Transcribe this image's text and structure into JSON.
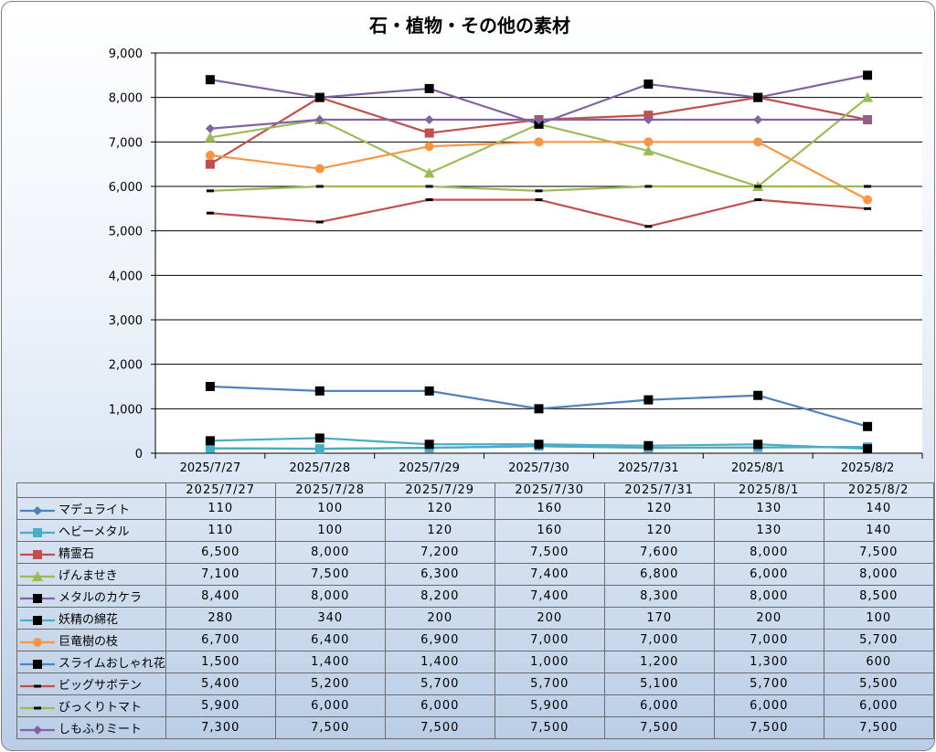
{
  "chart_data": {
    "type": "line",
    "title": "石・植物・その他の素材",
    "categories": [
      "2025/7/27",
      "2025/7/28",
      "2025/7/29",
      "2025/7/30",
      "2025/7/31",
      "2025/8/1",
      "2025/8/2"
    ],
    "ylim": [
      0,
      9000
    ],
    "yticks": [
      "0",
      "1,000",
      "2,000",
      "3,000",
      "4,000",
      "5,000",
      "6,000",
      "7,000",
      "8,000",
      "9,000"
    ],
    "grid": true,
    "legend": "data-table",
    "series": [
      {
        "name": "マデュライト",
        "color": "#4f81bd",
        "marker": "diamond",
        "values": [
          110,
          100,
          120,
          160,
          120,
          130,
          140
        ],
        "labels": [
          "110",
          "100",
          "120",
          "160",
          "120",
          "130",
          "140"
        ]
      },
      {
        "name": "ヘビーメタル",
        "color": "#4bacc6",
        "marker": "square",
        "values": [
          110,
          100,
          120,
          160,
          120,
          130,
          140
        ],
        "labels": [
          "110",
          "100",
          "120",
          "160",
          "120",
          "130",
          "140"
        ]
      },
      {
        "name": "精霊石",
        "color": "#c0504d",
        "marker": "square",
        "values": [
          6500,
          8000,
          7200,
          7500,
          7600,
          8000,
          7500
        ],
        "labels": [
          "6,500",
          "8,000",
          "7,200",
          "7,500",
          "7,600",
          "8,000",
          "7,500"
        ]
      },
      {
        "name": "げんませき",
        "color": "#9bbb59",
        "marker": "triangle",
        "values": [
          7100,
          7500,
          6300,
          7400,
          6800,
          6000,
          8000
        ],
        "labels": [
          "7,100",
          "7,500",
          "6,300",
          "7,400",
          "6,800",
          "6,000",
          "8,000"
        ]
      },
      {
        "name": "メタルのカケラ",
        "color": "#8064a2",
        "marker": "blacksquare",
        "values": [
          8400,
          8000,
          8200,
          7400,
          8300,
          8000,
          8500
        ],
        "labels": [
          "8,400",
          "8,000",
          "8,200",
          "7,400",
          "8,300",
          "8,000",
          "8,500"
        ]
      },
      {
        "name": "妖精の綿花",
        "color": "#4bacc6",
        "marker": "blacksquare",
        "values": [
          280,
          340,
          200,
          200,
          170,
          200,
          100
        ],
        "labels": [
          "280",
          "340",
          "200",
          "200",
          "170",
          "200",
          "100"
        ]
      },
      {
        "name": "巨竜樹の枝",
        "color": "#f79646",
        "marker": "circle",
        "values": [
          6700,
          6400,
          6900,
          7000,
          7000,
          7000,
          5700
        ],
        "labels": [
          "6,700",
          "6,400",
          "6,900",
          "7,000",
          "7,000",
          "7,000",
          "5,700"
        ]
      },
      {
        "name": "スライムおしゃれ花",
        "color": "#4f81bd",
        "marker": "blacksquare",
        "values": [
          1500,
          1400,
          1400,
          1000,
          1200,
          1300,
          600
        ],
        "labels": [
          "1,500",
          "1,400",
          "1,400",
          "1,000",
          "1,200",
          "1,300",
          "600"
        ]
      },
      {
        "name": "ビッグサボテン",
        "color": "#c0504d",
        "marker": "dash",
        "values": [
          5400,
          5200,
          5700,
          5700,
          5100,
          5700,
          5500
        ],
        "labels": [
          "5,400",
          "5,200",
          "5,700",
          "5,700",
          "5,100",
          "5,700",
          "5,500"
        ]
      },
      {
        "name": "びっくりトマト",
        "color": "#9bbb59",
        "marker": "dash",
        "values": [
          5900,
          6000,
          6000,
          5900,
          6000,
          6000,
          6000
        ],
        "labels": [
          "5,900",
          "6,000",
          "6,000",
          "5,900",
          "6,000",
          "6,000",
          "6,000"
        ]
      },
      {
        "name": "しもふりミート",
        "color": "#8064a2",
        "marker": "diamond",
        "values": [
          7300,
          7500,
          7500,
          7500,
          7500,
          7500,
          7500
        ],
        "labels": [
          "7,300",
          "7,500",
          "7,500",
          "7,500",
          "7,500",
          "7,500",
          "7,500"
        ]
      }
    ]
  }
}
